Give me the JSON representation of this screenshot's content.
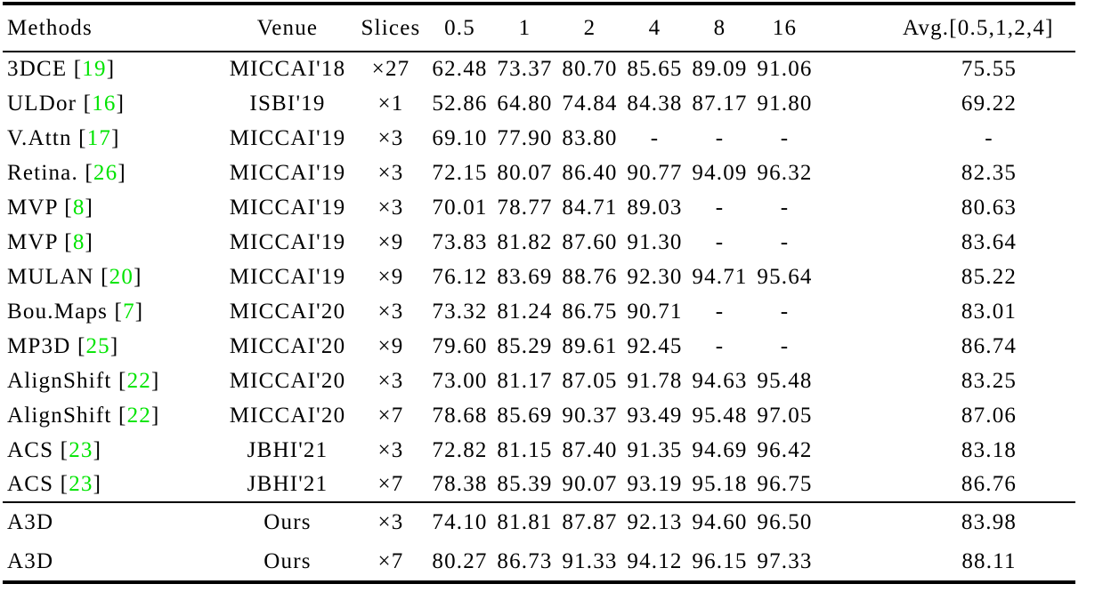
{
  "table": {
    "cite_color": "#00e400",
    "columns": [
      "Methods",
      "Venue",
      "Slices",
      "0.5",
      "1",
      "2",
      "4",
      "8",
      "16",
      "Avg.[0.5,1,2,4]"
    ],
    "rows": [
      {
        "method": "3DCE",
        "cite": "19",
        "venue": "MICCAI'18",
        "slices": "×27",
        "values": [
          "62.48",
          "73.37",
          "80.70",
          "85.65",
          "89.09",
          "91.06"
        ],
        "avg": "75.55",
        "bold": false
      },
      {
        "method": "ULDor",
        "cite": "16",
        "venue": "ISBI'19",
        "slices": "×1",
        "values": [
          "52.86",
          "64.80",
          "74.84",
          "84.38",
          "87.17",
          "91.80"
        ],
        "avg": "69.22",
        "bold": false
      },
      {
        "method": "V.Attn",
        "cite": "17",
        "venue": "MICCAI'19",
        "slices": "×3",
        "values": [
          "69.10",
          "77.90",
          "83.80",
          "-",
          "-",
          "-"
        ],
        "avg": "-",
        "bold": false
      },
      {
        "method": "Retina.",
        "cite": "26",
        "venue": "MICCAI'19",
        "slices": "×3",
        "values": [
          "72.15",
          "80.07",
          "86.40",
          "90.77",
          "94.09",
          "96.32"
        ],
        "avg": "82.35",
        "bold": false
      },
      {
        "method": "MVP",
        "cite": "8",
        "venue": "MICCAI'19",
        "slices": "×3",
        "values": [
          "70.01",
          "78.77",
          "84.71",
          "89.03",
          "-",
          "-"
        ],
        "avg": "80.63",
        "bold": false
      },
      {
        "method": "MVP",
        "cite": "8",
        "venue": "MICCAI'19",
        "slices": "×9",
        "values": [
          "73.83",
          "81.82",
          "87.60",
          "91.30",
          "-",
          "-"
        ],
        "avg": "83.64",
        "bold": false
      },
      {
        "method": "MULAN",
        "cite": "20",
        "venue": "MICCAI'19",
        "slices": "×9",
        "values": [
          "76.12",
          "83.69",
          "88.76",
          "92.30",
          "94.71",
          "95.64"
        ],
        "avg": "85.22",
        "bold": false
      },
      {
        "method": "Bou.Maps",
        "cite": "7",
        "venue": "MICCAI'20",
        "slices": "×3",
        "values": [
          "73.32",
          "81.24",
          "86.75",
          "90.71",
          "-",
          "-"
        ],
        "avg": "83.01",
        "bold": false
      },
      {
        "method": "MP3D",
        "cite": "25",
        "venue": "MICCAI'20",
        "slices": "×9",
        "values": [
          "79.60",
          "85.29",
          "89.61",
          "92.45",
          "-",
          "-"
        ],
        "avg": "86.74",
        "bold": false
      },
      {
        "method": "AlignShift",
        "cite": "22",
        "venue": "MICCAI'20",
        "slices": "×3",
        "values": [
          "73.00",
          "81.17",
          "87.05",
          "91.78",
          "94.63",
          "95.48"
        ],
        "avg": "83.25",
        "bold": false
      },
      {
        "method": "AlignShift",
        "cite": "22",
        "venue": "MICCAI'20",
        "slices": "×7",
        "values": [
          "78.68",
          "85.69",
          "90.37",
          "93.49",
          "95.48",
          "97.05"
        ],
        "avg": "87.06",
        "bold": false
      },
      {
        "method": "ACS",
        "cite": "23",
        "venue": "JBHI'21",
        "slices": "×3",
        "values": [
          "72.82",
          "81.15",
          "87.40",
          "91.35",
          "94.69",
          "96.42"
        ],
        "avg": "83.18",
        "bold": false
      },
      {
        "method": "ACS",
        "cite": "23",
        "venue": "JBHI'21",
        "slices": "×7",
        "values": [
          "78.38",
          "85.39",
          "90.07",
          "93.19",
          "95.18",
          "96.75"
        ],
        "avg": "86.76",
        "bold": false
      }
    ],
    "ours_rows": [
      {
        "method": "A3D",
        "cite": null,
        "venue": "Ours",
        "slices": "×3",
        "values": [
          "74.10",
          "81.81",
          "87.87",
          "92.13",
          "94.60",
          "96.50"
        ],
        "avg": "83.98",
        "bold": false
      },
      {
        "method": "A3D",
        "cite": null,
        "venue": "Ours",
        "slices": "×7",
        "values": [
          "80.27",
          "86.73",
          "91.33",
          "94.12",
          "96.15",
          "97.33"
        ],
        "avg": "88.11",
        "bold": true
      }
    ]
  }
}
